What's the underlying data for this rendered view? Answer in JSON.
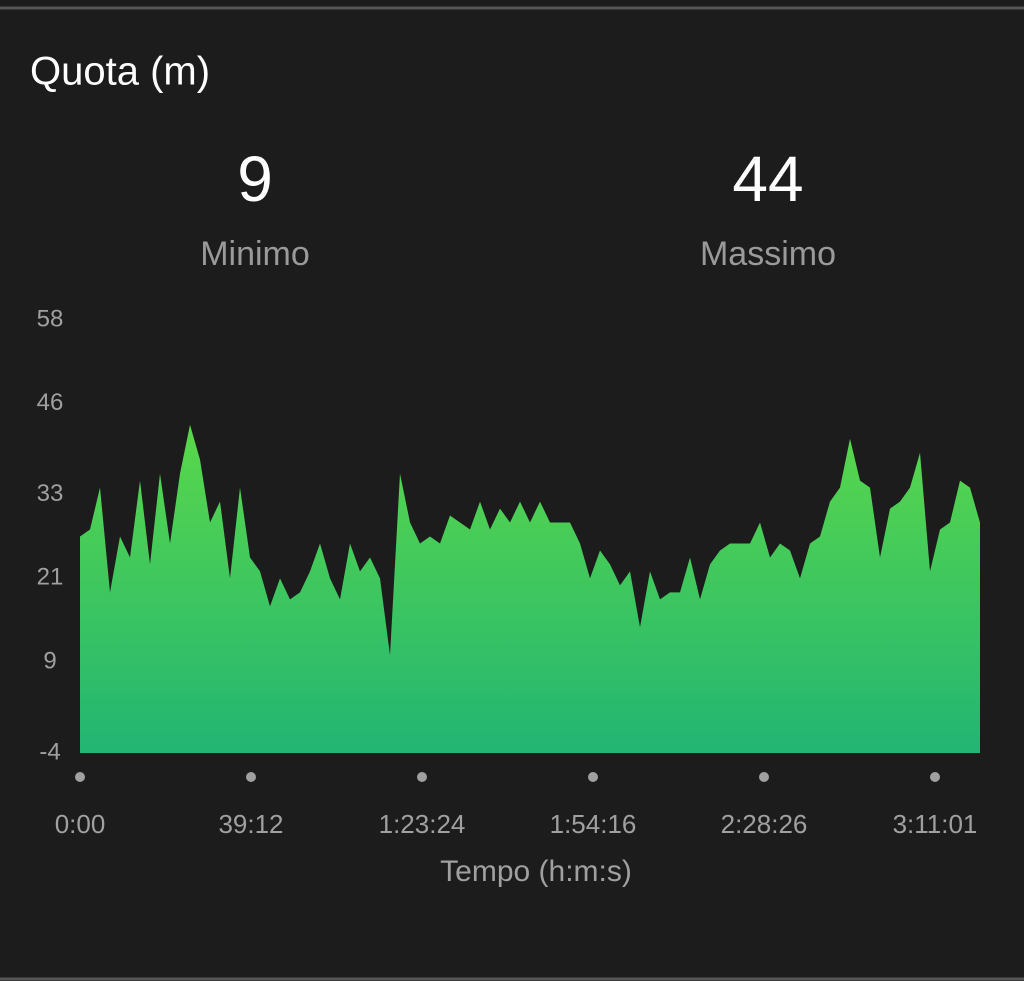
{
  "chart_data": {
    "type": "area",
    "title": "Quota (m)",
    "stats": [
      {
        "value": "9",
        "label": "Minimo"
      },
      {
        "value": "44",
        "label": "Massimo"
      }
    ],
    "x_label": "Tempo (h:m:s)",
    "values": [
      27,
      28,
      34,
      19,
      27,
      24,
      35,
      23,
      36,
      26,
      36,
      43,
      38,
      29,
      32,
      21,
      34,
      24,
      22,
      17,
      21,
      18,
      19,
      22,
      26,
      21,
      18,
      26,
      22,
      24,
      21,
      10,
      36,
      29,
      26,
      27,
      26,
      30,
      29,
      28,
      32,
      28,
      31,
      29,
      32,
      29,
      32,
      29,
      29,
      29,
      26,
      21,
      25,
      23,
      20,
      22,
      14,
      22,
      18,
      19,
      19,
      24,
      18,
      23,
      25,
      26,
      26,
      26,
      29,
      24,
      26,
      25,
      21,
      26,
      27,
      32,
      34,
      41,
      35,
      34,
      24,
      31,
      32,
      34,
      39,
      22,
      28,
      29,
      35,
      34,
      29
    ],
    "color_top": "#5ad84a",
    "color_bottom": "#22b573",
    "xlim": [
      0,
      90
    ],
    "xticks": [
      {
        "value": 0,
        "label": "0:00"
      },
      {
        "value": 17.1,
        "label": "39:12"
      },
      {
        "value": 34.2,
        "label": "1:23:24"
      },
      {
        "value": 51.3,
        "label": "1:54:16"
      },
      {
        "value": 68.4,
        "label": "2:28:26"
      },
      {
        "value": 85.5,
        "label": "3:11:01"
      }
    ],
    "ylim": [
      -4,
      58
    ],
    "yticks": [
      -4,
      9,
      21,
      33,
      46,
      58
    ]
  }
}
